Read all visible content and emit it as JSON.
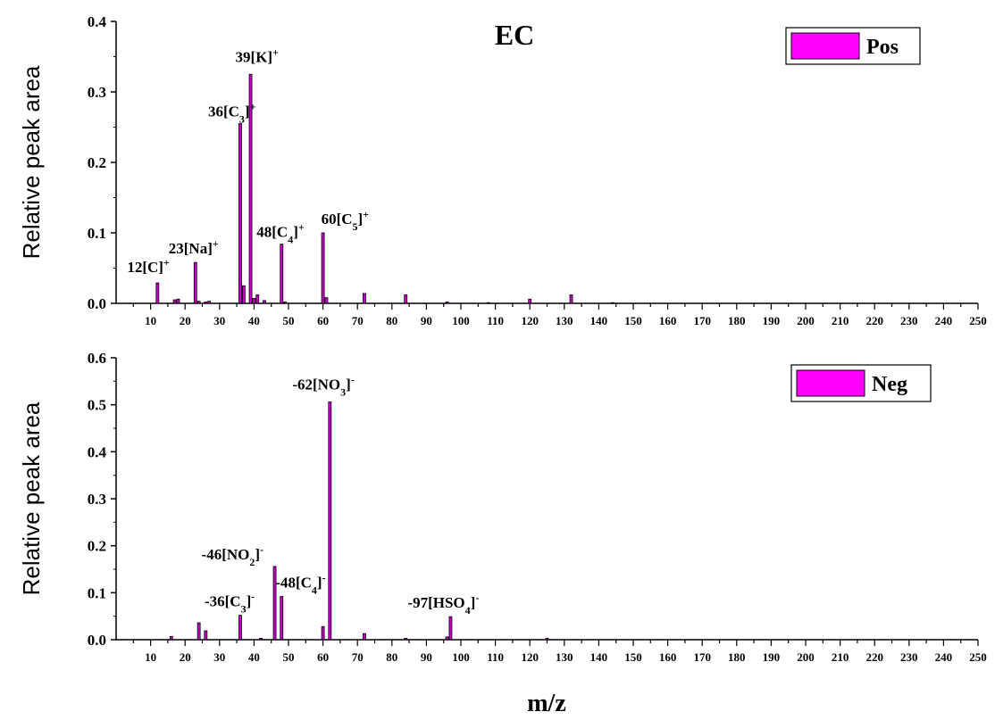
{
  "colors": {
    "bar_fill": "#cc00cc",
    "bar_edge": "#000000",
    "legend_fill": "#ff00ff",
    "axis": "#000000",
    "background": "#ffffff"
  },
  "xlabel": "m/z",
  "chart_data": [
    {
      "type": "bar",
      "title": "EC",
      "ylabel": "Relative peak area",
      "legend": "Pos",
      "legend_position": "top-right",
      "xlim": [
        0,
        250
      ],
      "ylim": [
        0,
        0.4
      ],
      "yticks": [
        0.0,
        0.1,
        0.2,
        0.3,
        0.4
      ],
      "ytick_labels": [
        "0.0",
        "0.1",
        "0.2",
        "0.3",
        "0.4"
      ],
      "xticks": [
        10,
        20,
        30,
        40,
        50,
        60,
        70,
        80,
        90,
        100,
        110,
        120,
        130,
        140,
        150,
        160,
        170,
        180,
        190,
        200,
        210,
        220,
        230,
        240,
        250
      ],
      "points": [
        {
          "x": 12,
          "y": 0.029
        },
        {
          "x": 17,
          "y": 0.005
        },
        {
          "x": 18,
          "y": 0.006
        },
        {
          "x": 23,
          "y": 0.058
        },
        {
          "x": 24,
          "y": 0.003
        },
        {
          "x": 26,
          "y": 0.002
        },
        {
          "x": 27,
          "y": 0.003
        },
        {
          "x": 36,
          "y": 0.255
        },
        {
          "x": 37,
          "y": 0.025
        },
        {
          "x": 39,
          "y": 0.325
        },
        {
          "x": 40,
          "y": 0.007
        },
        {
          "x": 41,
          "y": 0.012
        },
        {
          "x": 43,
          "y": 0.004
        },
        {
          "x": 48,
          "y": 0.084
        },
        {
          "x": 49,
          "y": 0.002
        },
        {
          "x": 60,
          "y": 0.1
        },
        {
          "x": 61,
          "y": 0.008
        },
        {
          "x": 72,
          "y": 0.014
        },
        {
          "x": 84,
          "y": 0.012
        },
        {
          "x": 96,
          "y": 0.002
        },
        {
          "x": 108,
          "y": 0.001
        },
        {
          "x": 120,
          "y": 0.006
        },
        {
          "x": 132,
          "y": 0.012
        },
        {
          "x": 144,
          "y": 0.001
        }
      ],
      "annotations": [
        {
          "x": 12,
          "y": 0.029,
          "text": "12[C]",
          "charge": "+"
        },
        {
          "x": 23,
          "y": 0.058,
          "text": "23[Na]",
          "charge": "+"
        },
        {
          "x": 36,
          "y": 0.255,
          "text": "36[C3]",
          "charge": "+"
        },
        {
          "x": 39,
          "y": 0.325,
          "text": "39[K]",
          "charge": "+"
        },
        {
          "x": 48,
          "y": 0.084,
          "text": "48[C4]",
          "charge": "+"
        },
        {
          "x": 60,
          "y": 0.1,
          "text": "60[C5]",
          "charge": "+"
        }
      ]
    },
    {
      "type": "bar",
      "title": "",
      "ylabel": "Relative peak area",
      "legend": "Neg",
      "legend_position": "top-right",
      "xlim": [
        0,
        250
      ],
      "ylim": [
        0,
        0.6
      ],
      "yticks": [
        0.0,
        0.1,
        0.2,
        0.3,
        0.4,
        0.5,
        0.6
      ],
      "ytick_labels": [
        "0.0",
        "0.1",
        "0.2",
        "0.3",
        "0.4",
        "0.5",
        "0.6"
      ],
      "xticks": [
        10,
        20,
        30,
        40,
        50,
        60,
        70,
        80,
        90,
        100,
        110,
        120,
        130,
        140,
        150,
        160,
        170,
        180,
        190,
        200,
        210,
        220,
        230,
        240,
        250
      ],
      "points": [
        {
          "x": 16,
          "y": 0.007
        },
        {
          "x": 24,
          "y": 0.036
        },
        {
          "x": 26,
          "y": 0.019
        },
        {
          "x": 36,
          "y": 0.052
        },
        {
          "x": 42,
          "y": 0.003
        },
        {
          "x": 46,
          "y": 0.156
        },
        {
          "x": 48,
          "y": 0.092
        },
        {
          "x": 60,
          "y": 0.028
        },
        {
          "x": 62,
          "y": 0.506
        },
        {
          "x": 72,
          "y": 0.013
        },
        {
          "x": 84,
          "y": 0.003
        },
        {
          "x": 96,
          "y": 0.006
        },
        {
          "x": 97,
          "y": 0.049
        },
        {
          "x": 125,
          "y": 0.003
        }
      ],
      "annotations": [
        {
          "x": 36,
          "y": 0.052,
          "text": "-36[C3]",
          "charge": "-"
        },
        {
          "x": 46,
          "y": 0.156,
          "text": "-46[NO2]",
          "charge": "-"
        },
        {
          "x": 48,
          "y": 0.092,
          "text": "-48[C4]",
          "charge": "-"
        },
        {
          "x": 62,
          "y": 0.506,
          "text": "-62[NO3]",
          "charge": "-"
        },
        {
          "x": 97,
          "y": 0.049,
          "text": "-97[HSO4]",
          "charge": "-"
        }
      ]
    }
  ]
}
